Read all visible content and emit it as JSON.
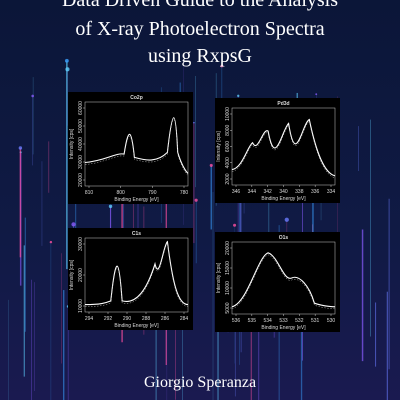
{
  "title_lines": [
    "Data Driven Guide to the Analysis",
    "of X-ray Photoelectron Spectra",
    "using RxpsG"
  ],
  "author": "Giorgio Speranza",
  "panels": [
    {
      "title": "Co2p",
      "x_label": "Binding Energy [eV]",
      "y_label": "Intensity [cps]",
      "xticks": [
        "810",
        "800",
        "790",
        "780"
      ],
      "yticks": [
        "20000",
        "30000",
        "40000",
        "50000",
        "60000"
      ]
    },
    {
      "title": "Pd3d",
      "x_label": "Binding Energy [eV]",
      "y_label": "Intensity [cps]",
      "xticks": [
        "346",
        "344",
        "342",
        "340",
        "338",
        "336",
        "334"
      ],
      "yticks": [
        "2000",
        "4000",
        "6000",
        "8000",
        "10000"
      ]
    },
    {
      "title": "C1s",
      "x_label": "Binding Energy [eV]",
      "y_label": "Intensity [cps]",
      "xticks": [
        "294",
        "292",
        "290",
        "288",
        "286",
        "284"
      ],
      "yticks": [
        "10000",
        "20000",
        "30000"
      ]
    },
    {
      "title": "O1s",
      "x_label": "Binding Energy [eV]",
      "y_label": "Intensity [cps]",
      "xticks": [
        "536",
        "535",
        "534",
        "533",
        "532",
        "531",
        "530"
      ],
      "yticks": [
        "5000",
        "10000",
        "15000",
        "20000"
      ]
    }
  ]
}
